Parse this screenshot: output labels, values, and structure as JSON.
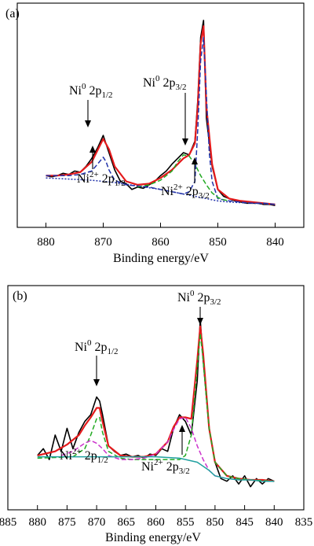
{
  "chart_data": [
    {
      "panel": "(a)",
      "type": "line",
      "xlabel": "Binding energy/eV",
      "xlim": [
        885,
        835
      ],
      "x_reversed": true,
      "xticks": [
        880,
        870,
        860,
        850,
        840
      ],
      "annotations": [
        {
          "id": "ni0-12",
          "base": "Ni",
          "sup": "0",
          "mid": " 2p",
          "sub": "1/2"
        },
        {
          "id": "ni2-12",
          "base": "Ni",
          "sup": "2+",
          "mid": " 2p",
          "sub": "1/2"
        },
        {
          "id": "ni0-32",
          "base": "Ni",
          "sup": "0",
          "mid": " 2p",
          "sub": "3/2"
        },
        {
          "id": "ni2-32",
          "base": "Ni",
          "sup": "2+",
          "mid": " 2p",
          "sub": "3/2"
        }
      ],
      "series": [
        {
          "color": "#000000",
          "style": "solid",
          "role": "raw",
          "x": [
            880,
            879,
            878,
            877,
            876,
            875,
            874,
            873,
            872,
            871,
            870,
            869,
            868,
            867,
            866,
            865,
            864,
            863,
            862,
            861,
            860,
            859,
            858,
            857,
            856,
            855,
            854,
            853.5,
            853,
            852.5,
            852,
            851,
            850,
            849,
            848,
            847,
            846,
            845,
            844,
            843,
            842,
            841,
            840
          ],
          "y": [
            0.1,
            0.09,
            0.1,
            0.12,
            0.11,
            0.14,
            0.13,
            0.18,
            0.25,
            0.34,
            0.45,
            0.3,
            0.15,
            0.05,
            0.03,
            -0.02,
            0.0,
            -0.01,
            0.02,
            0.05,
            0.1,
            0.14,
            0.2,
            0.25,
            0.3,
            0.28,
            0.4,
            0.75,
            1.3,
            1.45,
            0.6,
            0.18,
            -0.02,
            -0.08,
            -0.1,
            -0.12,
            -0.13,
            -0.14,
            -0.14,
            -0.14,
            -0.15,
            -0.15,
            -0.16
          ]
        },
        {
          "color": "#e41a1c",
          "style": "solid",
          "role": "fit",
          "x": [
            880,
            878,
            876,
            874,
            872,
            871,
            870,
            869,
            868,
            866,
            864,
            862,
            860,
            858,
            856,
            855,
            854,
            853.5,
            853,
            852.5,
            852,
            851,
            850,
            848,
            846,
            844,
            842,
            840
          ],
          "y": [
            0.1,
            0.1,
            0.11,
            0.13,
            0.22,
            0.32,
            0.42,
            0.33,
            0.18,
            0.05,
            0.02,
            0.03,
            0.08,
            0.15,
            0.25,
            0.28,
            0.38,
            0.7,
            1.25,
            1.4,
            0.7,
            0.2,
            -0.02,
            -0.1,
            -0.12,
            -0.13,
            -0.14,
            -0.15
          ]
        },
        {
          "color": "#2233aa",
          "style": "dashed",
          "role": "Ni0",
          "x": [
            880,
            876,
            874,
            872,
            871,
            870,
            869.5,
            869,
            868,
            866,
            864,
            862,
            860,
            858,
            856,
            855,
            854,
            853.5,
            853,
            852.5,
            852,
            851.5,
            851,
            850,
            848,
            846,
            844,
            842,
            840
          ],
          "y": [
            0.1,
            0.1,
            0.11,
            0.14,
            0.2,
            0.26,
            0.22,
            0.15,
            0.06,
            0.02,
            0.01,
            0.0,
            -0.02,
            -0.04,
            -0.06,
            -0.04,
            0.05,
            0.5,
            1.1,
            1.3,
            0.8,
            0.3,
            0.05,
            -0.1,
            -0.12,
            -0.13,
            -0.14,
            -0.14,
            -0.15
          ]
        },
        {
          "color": "#22aa22",
          "style": "dashed",
          "role": "Ni2+",
          "x": [
            864,
            862,
            860,
            858,
            857,
            856,
            855,
            854,
            853,
            852,
            851,
            850,
            849,
            848
          ],
          "y": [
            0.0,
            0.02,
            0.06,
            0.14,
            0.22,
            0.28,
            0.27,
            0.2,
            0.1,
            0.02,
            -0.05,
            -0.09,
            -0.11,
            -0.12
          ]
        },
        {
          "color": "#2233aa",
          "style": "dotted",
          "role": "background",
          "x": [
            880,
            876,
            872,
            868,
            864,
            860,
            858,
            856,
            854,
            852,
            850,
            848,
            844,
            840
          ],
          "y": [
            0.08,
            0.07,
            0.06,
            0.04,
            0.01,
            -0.02,
            -0.04,
            -0.06,
            -0.08,
            -0.1,
            -0.12,
            -0.13,
            -0.14,
            -0.15
          ]
        }
      ]
    },
    {
      "panel": "(b)",
      "type": "line",
      "xlabel": "Binding energy/eV",
      "xlim": [
        885,
        835
      ],
      "x_reversed": true,
      "xticks": [
        885,
        880,
        875,
        870,
        865,
        860,
        855,
        850,
        845,
        840,
        835
      ],
      "annotations": [
        {
          "id": "ni0-12",
          "base": "Ni",
          "sup": "0",
          "mid": " 2p",
          "sub": "1/2"
        },
        {
          "id": "ni0-32",
          "base": "Ni",
          "sup": "0",
          "mid": " 2p",
          "sub": "3/2"
        },
        {
          "id": "ni2-12",
          "base": "Ni",
          "sup": "2+",
          "mid": " 2p",
          "sub": "1/2"
        },
        {
          "id": "ni2-32",
          "base": "Ni",
          "sup": "2+",
          "mid": " 2p",
          "sub": "3/2"
        }
      ],
      "series": [
        {
          "color": "#000000",
          "style": "solid",
          "role": "raw",
          "x": [
            880,
            879,
            878,
            877,
            876,
            875,
            874,
            873,
            872,
            871,
            870,
            869.5,
            869,
            868,
            867,
            866,
            865,
            864,
            863,
            862,
            861,
            860,
            859,
            858,
            857,
            856,
            855,
            854,
            853,
            852.5,
            852,
            851,
            850,
            849,
            848,
            847,
            846,
            845,
            844,
            843,
            842,
            841,
            840
          ],
          "y": [
            0.05,
            0.1,
            0.02,
            0.2,
            0.08,
            0.25,
            0.1,
            0.22,
            0.3,
            0.35,
            0.48,
            0.45,
            0.35,
            0.12,
            0.08,
            0.05,
            0.06,
            0.04,
            0.05,
            0.03,
            0.06,
            0.05,
            0.1,
            0.08,
            0.25,
            0.35,
            0.3,
            0.2,
            0.6,
            1.05,
            0.75,
            0.25,
            0.0,
            -0.12,
            -0.14,
            -0.1,
            -0.16,
            -0.1,
            -0.18,
            -0.12,
            -0.16,
            -0.12,
            -0.14
          ]
        },
        {
          "color": "#e41a1c",
          "style": "solid",
          "role": "fit",
          "x": [
            880,
            877,
            875,
            873,
            872,
            871,
            870,
            869.5,
            869,
            868,
            866,
            864,
            862,
            860,
            858,
            857,
            856,
            855,
            854,
            853,
            852.5,
            852,
            851,
            850,
            848,
            846,
            844,
            842,
            840
          ],
          "y": [
            0.05,
            0.08,
            0.13,
            0.2,
            0.27,
            0.33,
            0.4,
            0.4,
            0.3,
            0.12,
            0.05,
            0.04,
            0.04,
            0.06,
            0.15,
            0.26,
            0.33,
            0.33,
            0.32,
            0.75,
            1.0,
            0.8,
            0.25,
            0.0,
            -0.1,
            -0.12,
            -0.13,
            -0.13,
            -0.14
          ]
        },
        {
          "color": "#22aa22",
          "style": "dashed",
          "role": "Ni0",
          "x": [
            880,
            874,
            872,
            871,
            870,
            869.5,
            869,
            868,
            866,
            864,
            862,
            860,
            858,
            856,
            855,
            854,
            853,
            852.5,
            852,
            851,
            850,
            848,
            846,
            844,
            840
          ],
          "y": [
            0.03,
            0.04,
            0.1,
            0.2,
            0.32,
            0.33,
            0.22,
            0.08,
            0.03,
            0.02,
            0.02,
            0.02,
            0.02,
            0.02,
            0.05,
            0.2,
            0.7,
            0.95,
            0.75,
            0.25,
            0.0,
            -0.1,
            -0.12,
            -0.13,
            -0.14
          ]
        },
        {
          "color": "#cc33cc",
          "style": "dashed",
          "role": "Ni2+",
          "x": [
            876,
            874,
            872,
            871,
            870,
            869,
            868,
            866,
            864,
            862,
            860,
            858,
            857,
            856,
            855,
            854,
            853,
            852,
            851,
            850,
            848
          ],
          "y": [
            0.05,
            0.08,
            0.14,
            0.16,
            0.14,
            0.1,
            0.05,
            0.02,
            0.02,
            0.03,
            0.06,
            0.15,
            0.24,
            0.32,
            0.33,
            0.25,
            0.12,
            0.02,
            -0.06,
            -0.1,
            -0.12
          ]
        },
        {
          "color": "#20a0a0",
          "style": "solid",
          "role": "background",
          "x": [
            880,
            876,
            872,
            868,
            864,
            860,
            856,
            853,
            851,
            850,
            848,
            846,
            844,
            842,
            840
          ],
          "y": [
            0.04,
            0.04,
            0.04,
            0.04,
            0.04,
            0.04,
            0.03,
            0.0,
            -0.06,
            -0.1,
            -0.12,
            -0.13,
            -0.13,
            -0.14,
            -0.14
          ]
        }
      ]
    }
  ]
}
